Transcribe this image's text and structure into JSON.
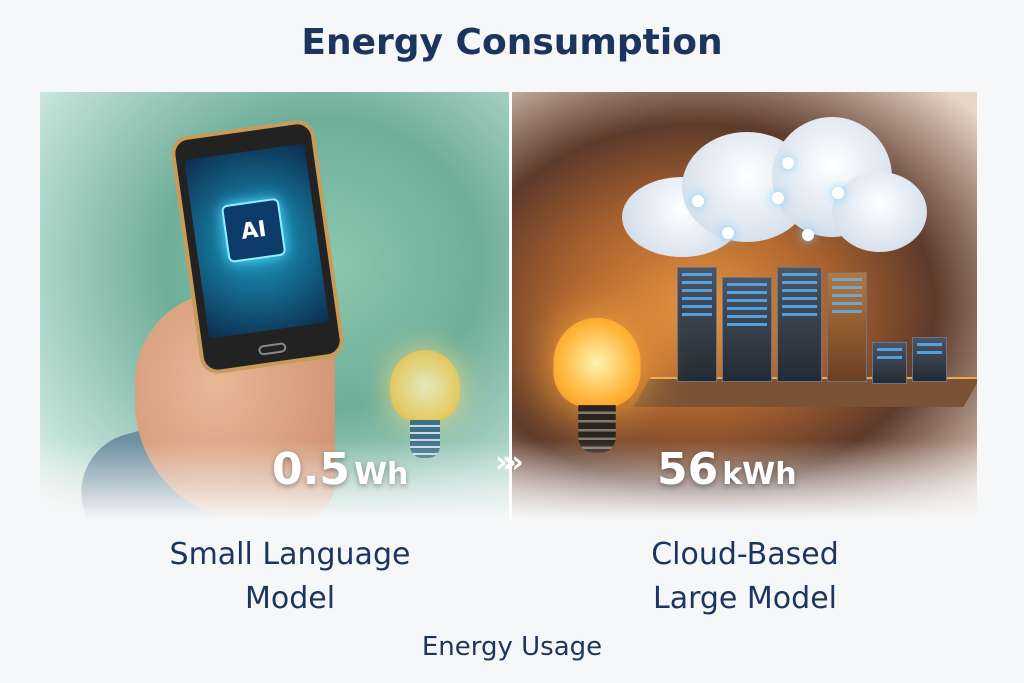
{
  "title": "Energy Consumption",
  "left": {
    "value": "0.5",
    "unit": "Wh",
    "chip_label": "AI",
    "label_line1": "Small Language",
    "label_line2": "Model",
    "theme_color": "#6fae9a"
  },
  "right": {
    "value": "56",
    "unit": "kWh",
    "label_line1": "Cloud-Based",
    "label_line2": "Large Model",
    "theme_color": "#e7953f"
  },
  "arrows": "»»",
  "footer": "Energy Usage",
  "text_color": "#1c355e"
}
